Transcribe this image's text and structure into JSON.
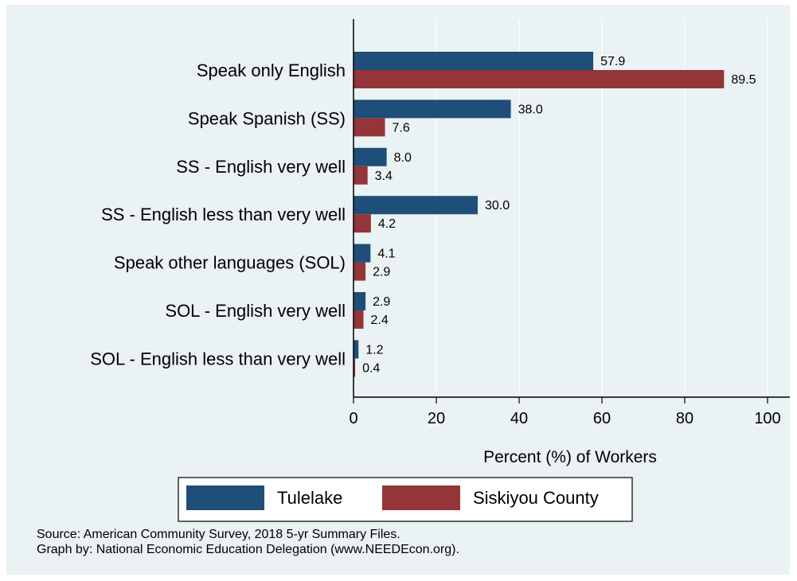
{
  "chart_data": {
    "type": "bar",
    "orientation": "horizontal",
    "categories": [
      "Speak only English",
      "Speak Spanish (SS)",
      "SS - English very well",
      "SS - English less than very well",
      "Speak other languages (SOL)",
      "SOL - English very well",
      "SOL - English less than very well"
    ],
    "series": [
      {
        "name": "Tulelake",
        "color": "#1f4e79",
        "values": [
          57.9,
          38.0,
          8.0,
          30.0,
          4.1,
          2.9,
          1.2
        ],
        "labels": [
          "57.9",
          "38.0",
          "8.0",
          "30.0",
          "4.1",
          "2.9",
          "1.2"
        ]
      },
      {
        "name": "Siskiyou County",
        "color": "#943539",
        "values": [
          89.5,
          7.6,
          3.4,
          4.2,
          2.9,
          2.4,
          0.4
        ],
        "labels": [
          "89.5",
          "7.6",
          "3.4",
          "4.2",
          "2.9",
          "2.4",
          "0.4"
        ]
      }
    ],
    "xlabel": "Percent (%) of Workers",
    "xlim": [
      0,
      100
    ],
    "xticks": [
      0,
      20,
      40,
      60,
      80,
      100
    ],
    "grid": true,
    "legend": "bottom"
  },
  "notes": {
    "source": "Source: American Community Survey, 2018 5-yr Summary Files.",
    "credit": "Graph by: National Economic Education Delegation (www.NEEDEcon.org)."
  }
}
